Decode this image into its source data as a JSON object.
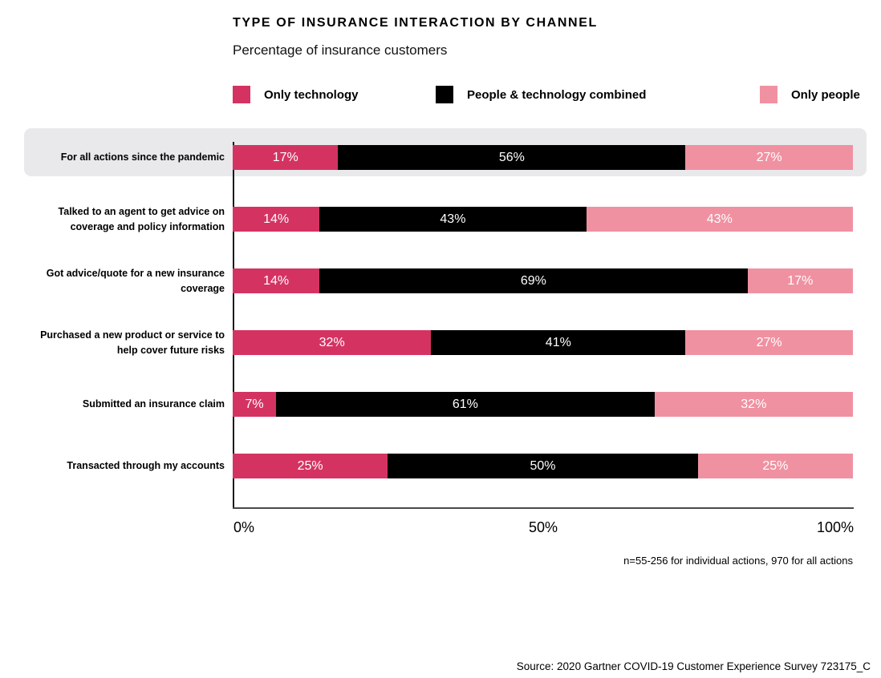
{
  "chart_data": {
    "type": "bar",
    "orientation": "horizontal",
    "stacked": true,
    "title": "TYPE OF INSURANCE INTERACTION BY CHANNEL",
    "subtitle": "Percentage of insurance customers",
    "categories": [
      "For all actions since the pandemic",
      "Talked to an agent to get advice on coverage and policy information",
      "Got advice/quote for a new insurance coverage",
      "Purchased a new product or service to help cover future risks",
      "Submitted an insurance claim",
      "Transacted through my accounts"
    ],
    "series": [
      {
        "name": "Only technology",
        "color": "#D43362",
        "values": [
          17,
          14,
          14,
          32,
          7,
          25
        ]
      },
      {
        "name": "People & technology combined",
        "color": "#000000",
        "values": [
          56,
          43,
          69,
          41,
          61,
          50
        ]
      },
      {
        "name": "Only people",
        "color": "#F091A1",
        "values": [
          27,
          43,
          17,
          27,
          32,
          25
        ]
      }
    ],
    "value_suffix": "%",
    "x_ticks": [
      "0%",
      "50%",
      "100%"
    ],
    "xlim": [
      0,
      100
    ],
    "grid": false,
    "legend_position": "top",
    "highlighted_category_index": 0,
    "highlight_color": "#E9E9EC",
    "note": "n=55-256 for individual actions, 970 for all actions",
    "source": "Source: 2020 Gartner COVID-19 Customer Experience Survey 723175_C"
  }
}
